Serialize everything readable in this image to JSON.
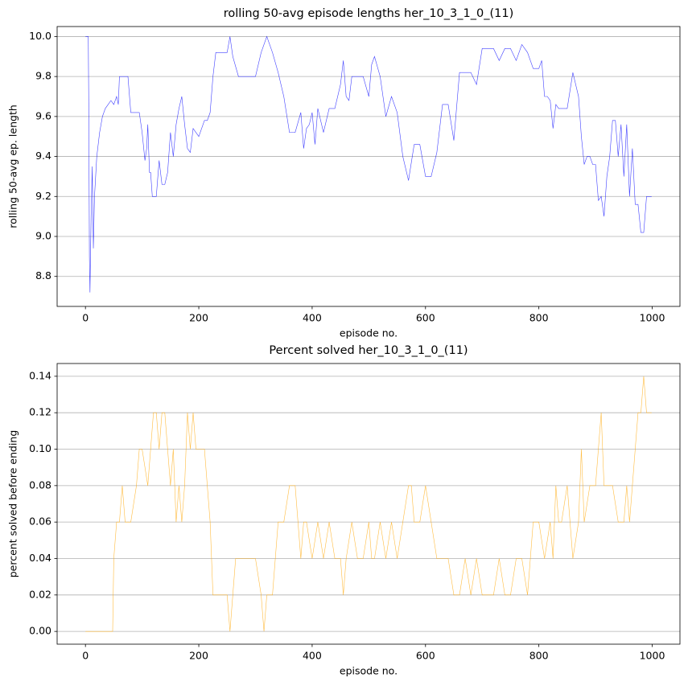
{
  "chart_data": [
    {
      "type": "line",
      "title": "rolling 50-avg episode lengths her_10_3_1_0_(11)",
      "x_label": "episode no.",
      "y_label": "rolling 50-avg ep. length",
      "x": [
        0,
        5,
        6,
        7,
        8,
        10,
        12,
        14,
        16,
        20,
        25,
        30,
        35,
        40,
        45,
        50,
        55,
        58,
        60,
        62,
        65,
        68,
        75,
        80,
        85,
        90,
        95,
        100,
        105,
        108,
        110,
        113,
        115,
        118,
        120,
        125,
        130,
        135,
        140,
        145,
        150,
        155,
        160,
        165,
        170,
        175,
        180,
        185,
        190,
        200,
        210,
        215,
        220,
        225,
        230,
        240,
        250,
        255,
        260,
        270,
        280,
        290,
        300,
        310,
        320,
        330,
        340,
        350,
        360,
        370,
        380,
        385,
        390,
        395,
        400,
        405,
        410,
        420,
        430,
        440,
        450,
        455,
        460,
        465,
        470,
        480,
        490,
        500,
        505,
        510,
        520,
        530,
        540,
        550,
        560,
        570,
        580,
        590,
        600,
        610,
        620,
        630,
        640,
        650,
        660,
        670,
        680,
        690,
        700,
        710,
        720,
        730,
        740,
        750,
        760,
        770,
        780,
        790,
        800,
        805,
        810,
        815,
        820,
        825,
        830,
        835,
        840,
        850,
        860,
        870,
        875,
        880,
        885,
        890,
        895,
        900,
        905,
        910,
        915,
        920,
        925,
        930,
        935,
        940,
        945,
        950,
        955,
        960,
        965,
        970,
        975,
        980,
        985,
        990,
        995,
        999
      ],
      "series": [
        {
          "color": "#0000ff",
          "values": [
            10.0,
            10.0,
            9.6,
            8.9,
            8.72,
            9.1,
            9.35,
            8.94,
            9.2,
            9.4,
            9.52,
            9.6,
            9.64,
            9.66,
            9.68,
            9.66,
            9.7,
            9.66,
            9.8,
            9.8,
            9.8,
            9.8,
            9.8,
            9.62,
            9.62,
            9.62,
            9.62,
            9.52,
            9.38,
            9.44,
            9.56,
            9.32,
            9.32,
            9.2,
            9.2,
            9.2,
            9.38,
            9.26,
            9.26,
            9.32,
            9.52,
            9.4,
            9.56,
            9.64,
            9.7,
            9.56,
            9.44,
            9.42,
            9.54,
            9.5,
            9.58,
            9.58,
            9.62,
            9.8,
            9.92,
            9.92,
            9.92,
            10.0,
            9.9,
            9.8,
            9.8,
            9.8,
            9.8,
            9.92,
            10.0,
            9.92,
            9.82,
            9.7,
            9.52,
            9.52,
            9.62,
            9.44,
            9.54,
            9.56,
            9.62,
            9.46,
            9.64,
            9.52,
            9.64,
            9.64,
            9.76,
            9.88,
            9.7,
            9.68,
            9.8,
            9.8,
            9.8,
            9.7,
            9.86,
            9.9,
            9.8,
            9.6,
            9.7,
            9.62,
            9.4,
            9.28,
            9.46,
            9.46,
            9.3,
            9.3,
            9.42,
            9.66,
            9.66,
            9.48,
            9.82,
            9.82,
            9.82,
            9.76,
            9.94,
            9.94,
            9.94,
            9.88,
            9.94,
            9.94,
            9.88,
            9.96,
            9.92,
            9.84,
            9.84,
            9.88,
            9.7,
            9.7,
            9.68,
            9.54,
            9.66,
            9.64,
            9.64,
            9.64,
            9.82,
            9.7,
            9.5,
            9.36,
            9.4,
            9.4,
            9.36,
            9.36,
            9.18,
            9.2,
            9.1,
            9.3,
            9.4,
            9.58,
            9.58,
            9.4,
            9.56,
            9.3,
            9.56,
            9.2,
            9.44,
            9.16,
            9.16,
            9.02,
            9.02,
            9.2,
            9.2,
            9.2
          ]
        }
      ],
      "xlim": [
        -49.95,
        1048.95
      ],
      "xticks": [
        0,
        200,
        400,
        600,
        800,
        1000
      ],
      "ylim": [
        8.65,
        10.05
      ],
      "yticks": [
        8.8,
        {
          "value": 9.0,
          "label": "9.0"
        },
        9.2,
        9.4,
        9.6,
        9.8,
        {
          "value": 10.0,
          "label": "10.0"
        }
      ],
      "grid": "y"
    },
    {
      "type": "line",
      "title": "Percent solved her_10_3_1_0_(11)",
      "x_label": "episode no.",
      "y_label": "percent solved before ending",
      "x": [
        0,
        48,
        50,
        55,
        60,
        65,
        70,
        80,
        90,
        95,
        100,
        110,
        115,
        120,
        125,
        130,
        135,
        140,
        145,
        150,
        155,
        160,
        165,
        170,
        175,
        180,
        185,
        190,
        195,
        200,
        210,
        220,
        225,
        230,
        240,
        250,
        255,
        260,
        265,
        270,
        280,
        290,
        300,
        310,
        315,
        320,
        325,
        330,
        340,
        350,
        360,
        370,
        375,
        380,
        385,
        390,
        400,
        410,
        420,
        430,
        440,
        450,
        455,
        460,
        470,
        480,
        490,
        500,
        505,
        510,
        520,
        530,
        540,
        550,
        560,
        570,
        575,
        580,
        590,
        600,
        610,
        620,
        630,
        640,
        650,
        660,
        670,
        680,
        690,
        700,
        710,
        720,
        730,
        740,
        750,
        760,
        770,
        780,
        790,
        800,
        810,
        820,
        825,
        830,
        835,
        840,
        850,
        860,
        870,
        875,
        880,
        890,
        900,
        905,
        910,
        915,
        920,
        930,
        940,
        950,
        955,
        960,
        965,
        970,
        975,
        980,
        985,
        990,
        999
      ],
      "series": [
        {
          "color": "#ffa500",
          "values": [
            0,
            0,
            0.04,
            0.06,
            0.06,
            0.08,
            0.06,
            0.06,
            0.08,
            0.1,
            0.1,
            0.08,
            0.1,
            0.12,
            0.12,
            0.1,
            0.12,
            0.12,
            0.1,
            0.08,
            0.1,
            0.06,
            0.08,
            0.06,
            0.08,
            0.12,
            0.1,
            0.12,
            0.1,
            0.1,
            0.1,
            0.06,
            0.02,
            0.02,
            0.02,
            0.02,
            0,
            0.02,
            0.04,
            0.04,
            0.04,
            0.04,
            0.04,
            0.02,
            0,
            0.02,
            0.02,
            0.02,
            0.06,
            0.06,
            0.08,
            0.08,
            0.06,
            0.04,
            0.06,
            0.06,
            0.04,
            0.06,
            0.04,
            0.06,
            0.04,
            0.04,
            0.02,
            0.04,
            0.06,
            0.04,
            0.04,
            0.06,
            0.04,
            0.04,
            0.06,
            0.04,
            0.06,
            0.04,
            0.06,
            0.08,
            0.08,
            0.06,
            0.06,
            0.08,
            0.06,
            0.04,
            0.04,
            0.04,
            0.02,
            0.02,
            0.04,
            0.02,
            0.04,
            0.02,
            0.02,
            0.02,
            0.04,
            0.02,
            0.02,
            0.04,
            0.04,
            0.02,
            0.06,
            0.06,
            0.04,
            0.06,
            0.04,
            0.08,
            0.06,
            0.06,
            0.08,
            0.04,
            0.06,
            0.1,
            0.06,
            0.08,
            0.08,
            0.1,
            0.12,
            0.08,
            0.08,
            0.08,
            0.06,
            0.06,
            0.08,
            0.06,
            0.08,
            0.1,
            0.12,
            0.12,
            0.14,
            0.12,
            0.12
          ]
        }
      ],
      "xlim": [
        -49.95,
        1048.95
      ],
      "xticks": [
        0,
        200,
        400,
        600,
        800,
        1000
      ],
      "ylim": [
        -0.007,
        0.147
      ],
      "yticks": [
        {
          "value": 0,
          "label": "0.00"
        },
        {
          "value": 0.02,
          "label": "0.02"
        },
        {
          "value": 0.04,
          "label": "0.04"
        },
        {
          "value": 0.06,
          "label": "0.06"
        },
        {
          "value": 0.08,
          "label": "0.08"
        },
        {
          "value": 0.1,
          "label": "0.10"
        },
        {
          "value": 0.12,
          "label": "0.12"
        },
        {
          "value": 0.14,
          "label": "0.14"
        }
      ],
      "grid": "y"
    }
  ]
}
